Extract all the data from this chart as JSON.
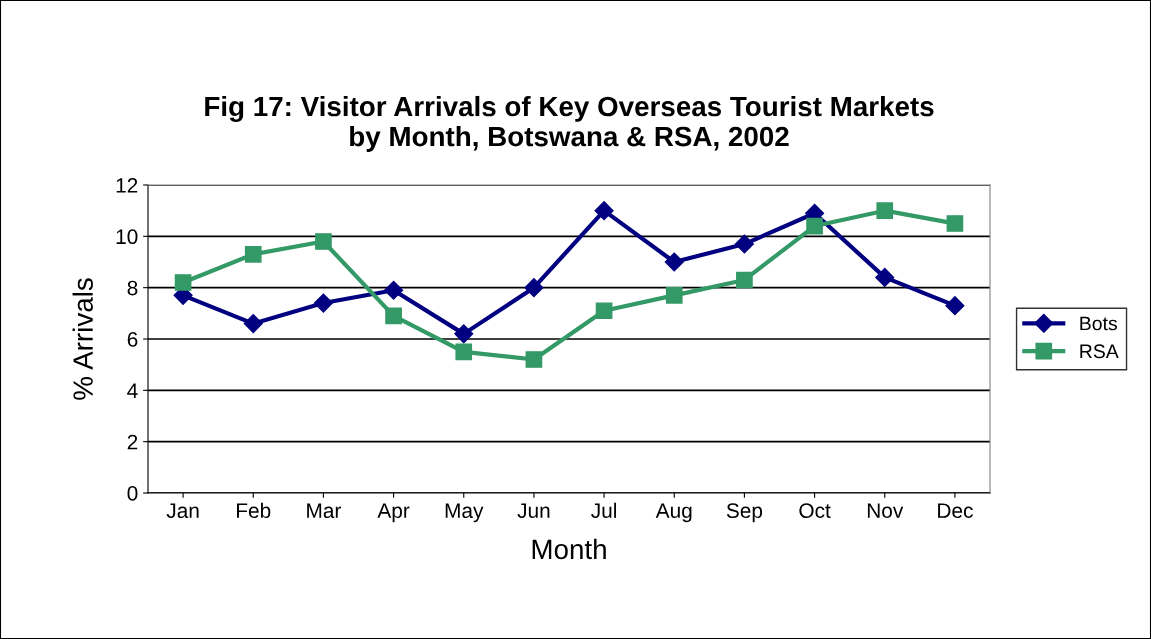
{
  "chart_data": {
    "type": "line",
    "title": "Fig 17: Visitor Arrivals of Key Overseas Tourist Markets\nby Month, Botswana & RSA, 2002",
    "xlabel": "Month",
    "ylabel": "% Arrivals",
    "categories": [
      "Jan",
      "Feb",
      "Mar",
      "Apr",
      "May",
      "Jun",
      "Jul",
      "Aug",
      "Sep",
      "Oct",
      "Nov",
      "Dec"
    ],
    "series": [
      {
        "name": "Bots",
        "color": "#000080",
        "marker": "diamond",
        "values": [
          7.7,
          6.6,
          7.4,
          7.9,
          6.2,
          8.0,
          11.0,
          9.0,
          9.7,
          10.9,
          8.4,
          7.3
        ]
      },
      {
        "name": "RSA",
        "color": "#339966",
        "marker": "square",
        "values": [
          8.2,
          9.3,
          9.8,
          6.9,
          5.5,
          5.2,
          7.1,
          7.7,
          8.3,
          10.4,
          11.0,
          10.5
        ]
      }
    ],
    "ylim": [
      0,
      12
    ],
    "yticks": [
      0,
      2,
      4,
      6,
      8,
      10,
      12
    ],
    "grid": "y",
    "legend": "right",
    "line_style": "solid"
  }
}
